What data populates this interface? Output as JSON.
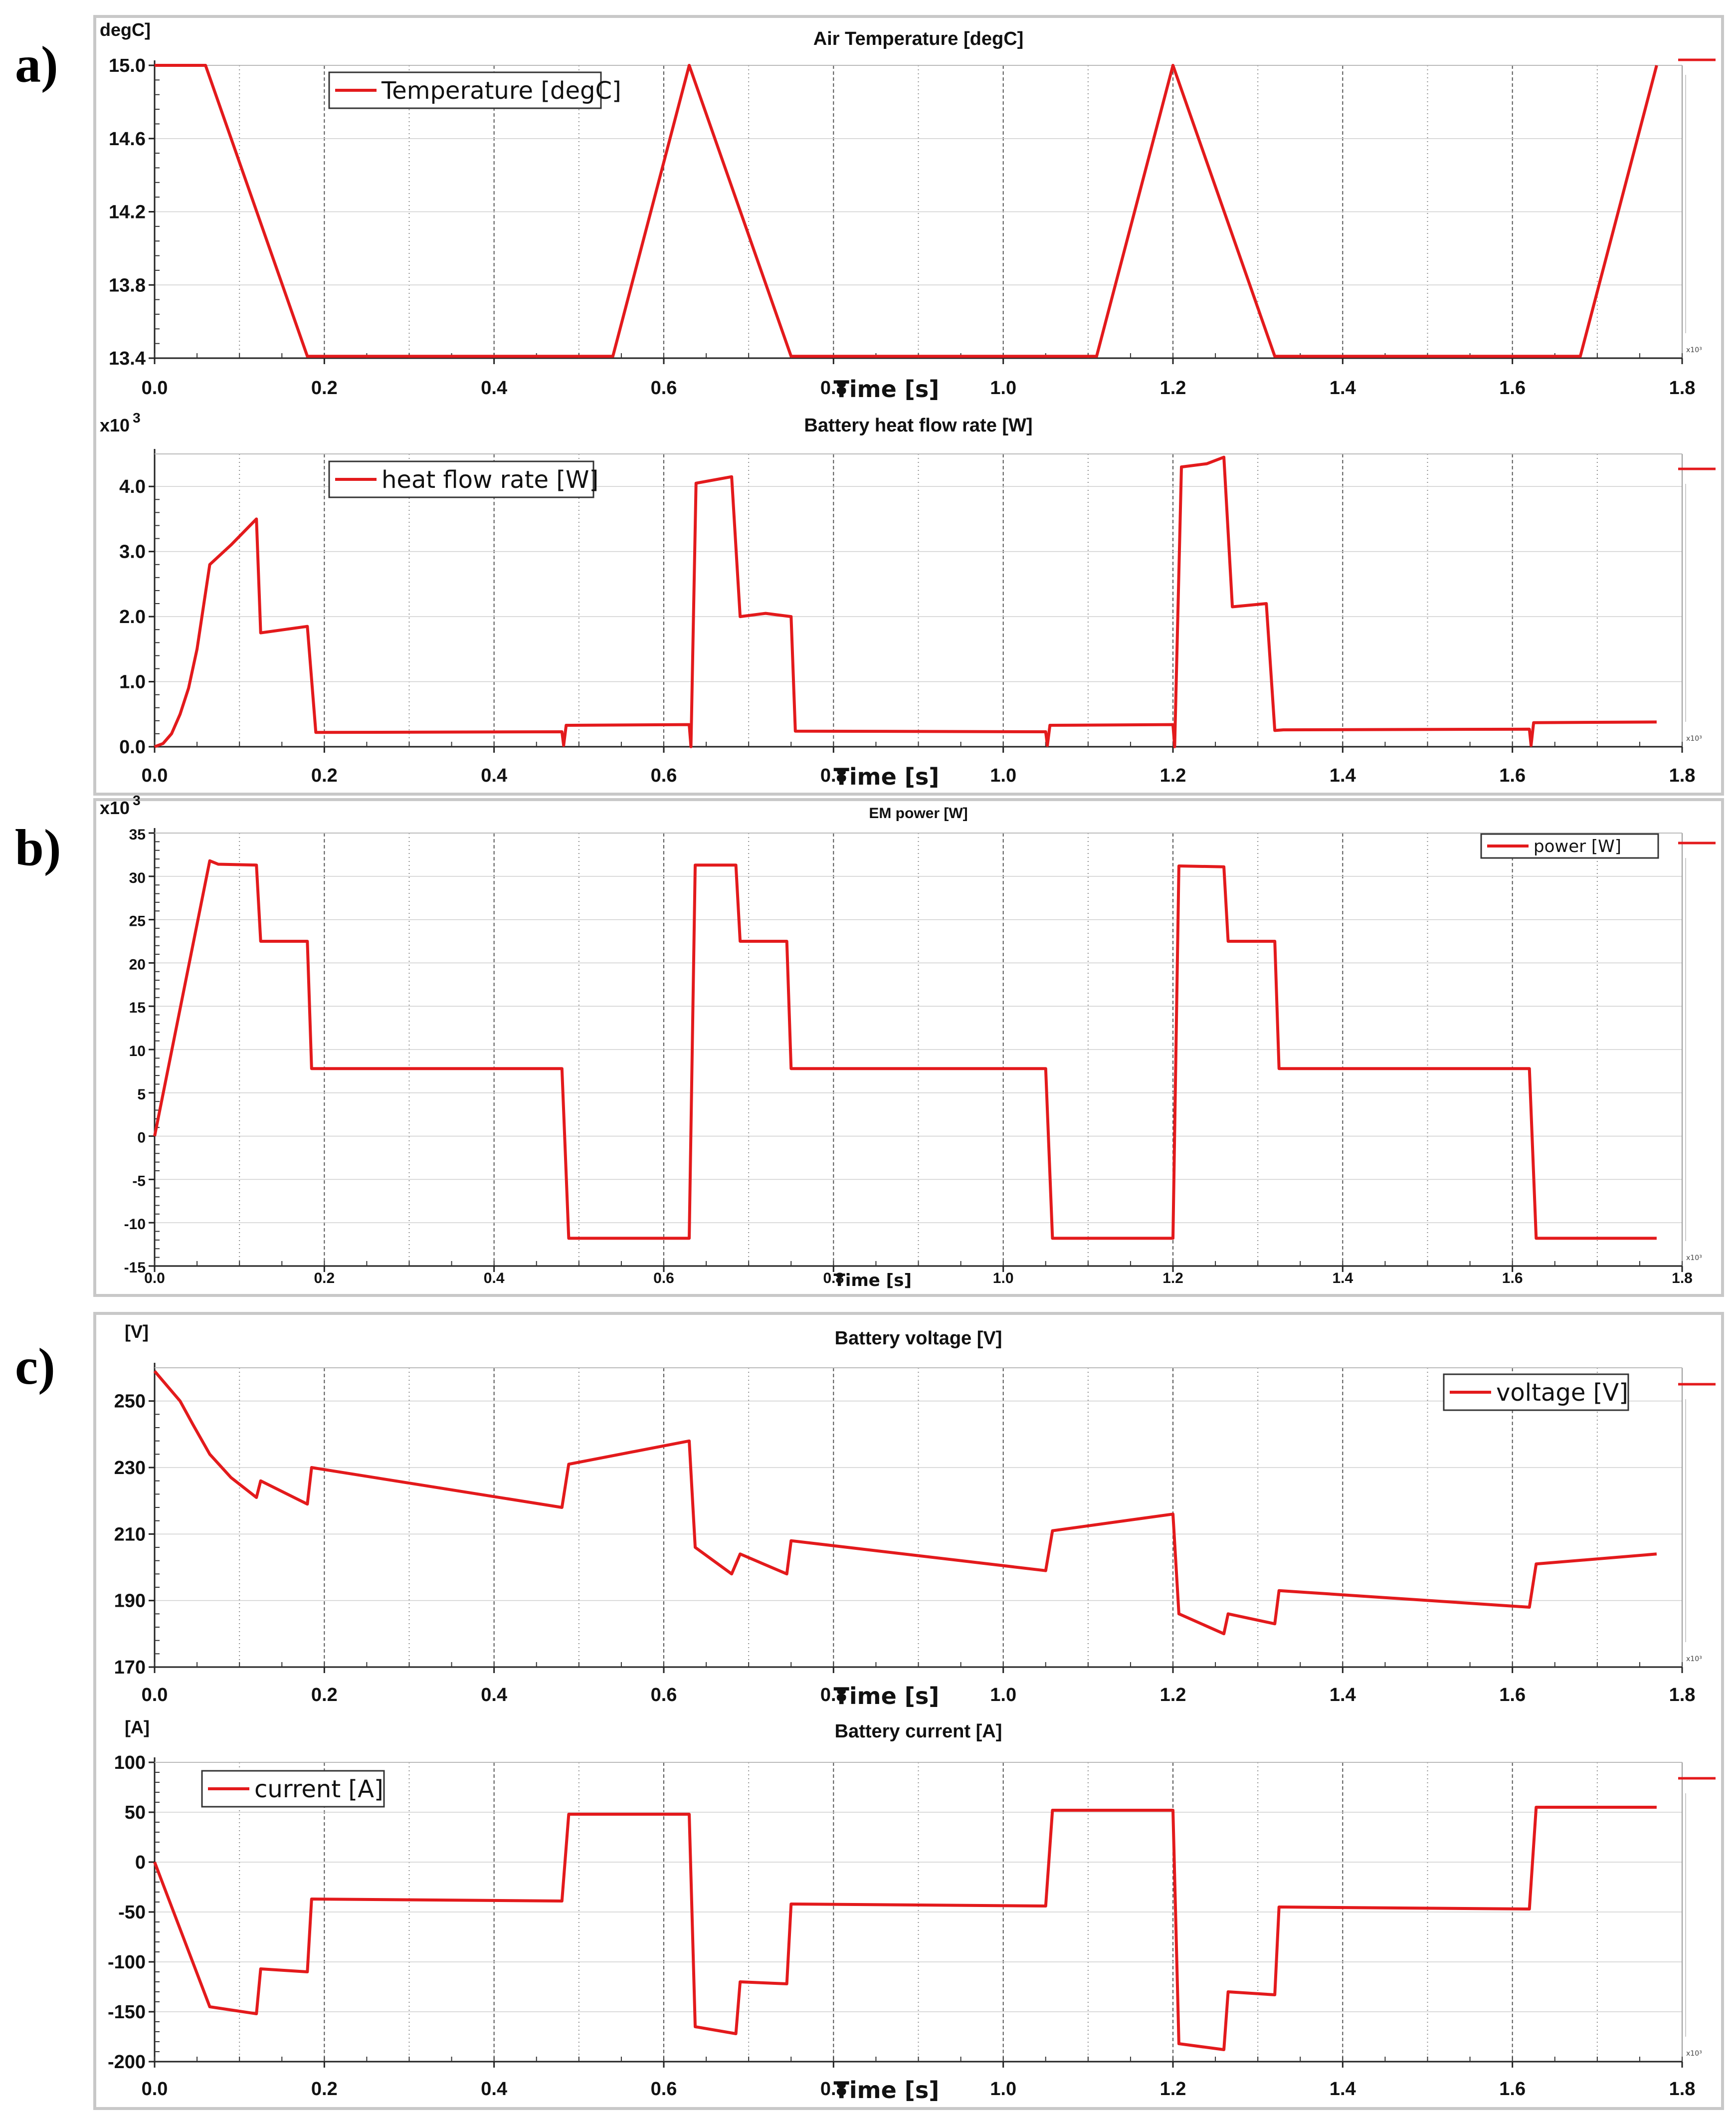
{
  "panel_labels": [
    "a)",
    "b)",
    "c)"
  ],
  "colors": {
    "series": "#e31a1c",
    "grid": "#7a7a7a",
    "frame": "#c8c8c8"
  },
  "chart_data": [
    {
      "id": "air-temperature",
      "type": "line",
      "title": "Air Temperature [degC]",
      "ylabel": "degC]",
      "xlabel": "Time [s]",
      "legend": "Temperature [degC]",
      "legend_position": "top-left",
      "ylim": [
        13.4,
        15.0
      ],
      "xlim": [
        0.0,
        1.8
      ],
      "yticks": [
        "13.4",
        "13.8",
        "14.2",
        "14.6",
        "15.0"
      ],
      "ytick_values": [
        13.4,
        13.8,
        14.2,
        14.6,
        15.0
      ],
      "xticks": [
        "0.0",
        "0.2",
        "0.4",
        "0.6",
        "0.8",
        "1.0",
        "1.2",
        "1.4",
        "1.6",
        "1.8"
      ],
      "x_multiplier": "x10³",
      "x": [
        0.0,
        0.06,
        0.18,
        0.54,
        0.63,
        0.75,
        1.11,
        1.2,
        1.32,
        1.68,
        1.77
      ],
      "y": [
        15.0,
        15.0,
        13.41,
        13.41,
        15.0,
        13.41,
        13.41,
        15.0,
        13.41,
        13.41,
        15.0
      ]
    },
    {
      "id": "battery-heat-flow",
      "type": "line",
      "title": "Battery heat flow rate  [W]",
      "ylabel": "x10",
      "ylabel_sup": "3",
      "xlabel": "Time [s]",
      "legend": "heat flow rate  [W]",
      "legend_position": "top-left",
      "ylim": [
        0.0,
        4.5
      ],
      "xlim": [
        0.0,
        1.8
      ],
      "yticks": [
        "0.0",
        "1.0",
        "2.0",
        "3.0",
        "4.0"
      ],
      "ytick_values": [
        0.0,
        1.0,
        2.0,
        3.0,
        4.0
      ],
      "xticks": [
        "0.0",
        "0.2",
        "0.4",
        "0.6",
        "0.8",
        "1.0",
        "1.2",
        "1.4",
        "1.6",
        "1.8"
      ],
      "x_multiplier": "x10³",
      "x": [
        0.0,
        0.01,
        0.02,
        0.03,
        0.04,
        0.05,
        0.065,
        0.09,
        0.12,
        0.125,
        0.18,
        0.19,
        0.48,
        0.482,
        0.485,
        0.63,
        0.632,
        0.638,
        0.68,
        0.69,
        0.72,
        0.75,
        0.755,
        1.05,
        1.052,
        1.055,
        1.2,
        1.202,
        1.21,
        1.24,
        1.26,
        1.27,
        1.31,
        1.32,
        1.33,
        1.62,
        1.622,
        1.625,
        1.77
      ],
      "y": [
        0.0,
        0.05,
        0.2,
        0.5,
        0.9,
        1.5,
        2.8,
        3.1,
        3.5,
        1.75,
        1.85,
        0.22,
        0.23,
        0.02,
        0.33,
        0.34,
        0.0,
        4.05,
        4.15,
        2.0,
        2.05,
        2.0,
        0.24,
        0.23,
        0.02,
        0.33,
        0.34,
        0.0,
        4.3,
        4.35,
        4.45,
        2.15,
        2.2,
        0.25,
        0.26,
        0.27,
        0.02,
        0.37,
        0.38
      ]
    },
    {
      "id": "em-power",
      "type": "line",
      "title": "EM power [W]",
      "ylabel": "x10",
      "ylabel_sup": "3",
      "xlabel": "Time [s]",
      "legend": "power [W]",
      "legend_position": "top-right",
      "ylim": [
        -15,
        35
      ],
      "xlim": [
        0.0,
        1.8
      ],
      "yticks": [
        "-15",
        "-10",
        "-5",
        "0",
        "5",
        "10",
        "15",
        "20",
        "25",
        "30",
        "35"
      ],
      "ytick_values": [
        -15,
        -10,
        -5,
        0,
        5,
        10,
        15,
        20,
        25,
        30,
        35
      ],
      "xticks": [
        "0.0",
        "0.2",
        "0.4",
        "0.6",
        "0.8",
        "1.0",
        "1.2",
        "1.4",
        "1.6",
        "1.8"
      ],
      "x_multiplier": "x10³",
      "x": [
        0.0,
        0.065,
        0.075,
        0.12,
        0.125,
        0.18,
        0.185,
        0.48,
        0.488,
        0.63,
        0.637,
        0.685,
        0.69,
        0.745,
        0.75,
        1.05,
        1.058,
        1.2,
        1.207,
        1.26,
        1.265,
        1.32,
        1.325,
        1.62,
        1.628,
        1.77
      ],
      "y": [
        0.0,
        31.8,
        31.4,
        31.3,
        22.5,
        22.5,
        7.8,
        7.8,
        -11.8,
        -11.8,
        31.3,
        31.3,
        22.5,
        22.5,
        7.8,
        7.8,
        -11.8,
        -11.8,
        31.2,
        31.1,
        22.5,
        22.5,
        7.8,
        7.8,
        -11.8,
        -11.8
      ]
    },
    {
      "id": "battery-voltage",
      "type": "line",
      "title": "Battery voltage [V]",
      "ylabel": "[V]",
      "xlabel": "Time [s]",
      "legend": "voltage [V]",
      "legend_position": "top-right",
      "ylim": [
        170,
        260
      ],
      "xlim": [
        0.0,
        1.8
      ],
      "yticks": [
        "170",
        "190",
        "210",
        "230",
        "250"
      ],
      "ytick_values": [
        170,
        190,
        210,
        230,
        250
      ],
      "xticks": [
        "0.0",
        "0.2",
        "0.4",
        "0.6",
        "0.8",
        "1.0",
        "1.2",
        "1.4",
        "1.6",
        "1.8"
      ],
      "x_multiplier": "x10³",
      "x": [
        0.0,
        0.01,
        0.03,
        0.045,
        0.065,
        0.09,
        0.12,
        0.125,
        0.18,
        0.185,
        0.48,
        0.488,
        0.63,
        0.637,
        0.68,
        0.69,
        0.745,
        0.75,
        1.05,
        1.058,
        1.2,
        1.207,
        1.26,
        1.265,
        1.32,
        1.325,
        1.62,
        1.628,
        1.77
      ],
      "y": [
        259,
        256,
        250,
        243,
        234,
        227,
        221,
        226,
        219,
        230,
        218,
        231,
        238,
        206,
        198,
        204,
        198,
        208,
        199,
        211,
        216,
        186,
        180,
        186,
        183,
        193,
        188,
        201,
        204
      ]
    },
    {
      "id": "battery-current",
      "type": "line",
      "title": "Battery current [A]",
      "ylabel": "[A]",
      "xlabel": "Time [s]",
      "legend": "current [A]",
      "legend_position": "top-left",
      "ylim": [
        -200,
        100
      ],
      "xlim": [
        0.0,
        1.8
      ],
      "yticks": [
        "-200",
        "-150",
        "-100",
        "-50",
        "0",
        "50",
        "100"
      ],
      "ytick_values": [
        -200,
        -150,
        -100,
        -50,
        0,
        50,
        100
      ],
      "xticks": [
        "0.0",
        "0.2",
        "0.4",
        "0.6",
        "0.8",
        "1.0",
        "1.2",
        "1.4",
        "1.6",
        "1.8"
      ],
      "x_multiplier": "x10³",
      "x": [
        0.0,
        0.065,
        0.12,
        0.125,
        0.18,
        0.185,
        0.48,
        0.488,
        0.63,
        0.637,
        0.685,
        0.69,
        0.745,
        0.75,
        1.05,
        1.058,
        1.2,
        1.207,
        1.26,
        1.265,
        1.32,
        1.325,
        1.62,
        1.628,
        1.77
      ],
      "y": [
        0,
        -145,
        -152,
        -107,
        -110,
        -37,
        -39,
        48,
        48,
        -165,
        -172,
        -120,
        -122,
        -42,
        -44,
        52,
        52,
        -182,
        -188,
        -130,
        -133,
        -45,
        -47,
        55,
        55
      ]
    }
  ]
}
